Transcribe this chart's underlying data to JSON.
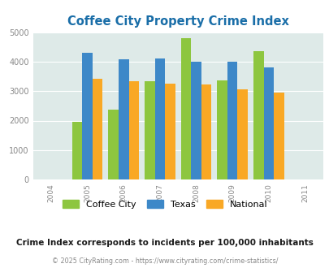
{
  "title": "Coffee City Property Crime Index",
  "all_years": [
    2004,
    2005,
    2006,
    2007,
    2008,
    2009,
    2010,
    2011
  ],
  "data_years": [
    2005,
    2006,
    2007,
    2008,
    2009,
    2010
  ],
  "coffee_city": [
    1960,
    2360,
    3340,
    4800,
    3360,
    4360
  ],
  "texas": [
    4300,
    4080,
    4110,
    4000,
    4010,
    3800
  ],
  "national": [
    3430,
    3340,
    3250,
    3220,
    3050,
    2950
  ],
  "colors": {
    "coffee_city": "#8dc63f",
    "texas": "#3d88c8",
    "national": "#f9a825"
  },
  "bg_color": "#deeae8",
  "ylim": [
    0,
    5000
  ],
  "yticks": [
    0,
    1000,
    2000,
    3000,
    4000,
    5000
  ],
  "legend_labels": [
    "Coffee City",
    "Texas",
    "National"
  ],
  "subtitle": "Crime Index corresponds to incidents per 100,000 inhabitants",
  "footer": "© 2025 CityRating.com - https://www.cityrating.com/crime-statistics/",
  "title_color": "#1a6ea8",
  "subtitle_color": "#1a1a1a",
  "footer_color": "#888888",
  "bar_width": 0.28,
  "grid_color": "#ffffff"
}
